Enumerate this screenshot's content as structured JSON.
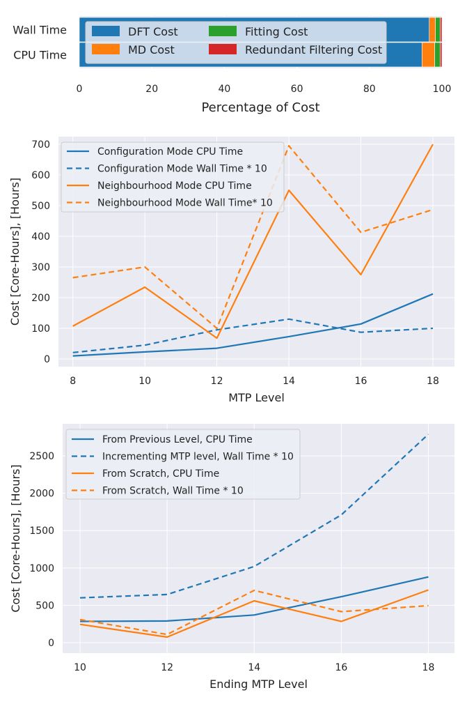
{
  "chart_data": [
    {
      "type": "bar",
      "orientation": "horizontal",
      "stacked": true,
      "categories": [
        "Wall Time",
        "CPU Time"
      ],
      "series": [
        {
          "name": "DFT Cost",
          "color": "#1f77b4",
          "values": [
            96.5,
            94.5
          ]
        },
        {
          "name": "MD Cost",
          "color": "#ff7f0e",
          "values": [
            1.7,
            3.5
          ]
        },
        {
          "name": "Fitting Cost",
          "color": "#2ca02c",
          "values": [
            1.3,
            1.5
          ]
        },
        {
          "name": "Redundant Filtering Cost",
          "color": "#d62728",
          "values": [
            0.5,
            0.5
          ]
        }
      ],
      "xlabel": "Percentage of Cost",
      "ylabel": "",
      "xlim": [
        0,
        100
      ],
      "xticks": [
        "0",
        "20",
        "40",
        "60",
        "80",
        "100"
      ],
      "grid": true,
      "legend": "upper-left, 2 columns"
    },
    {
      "type": "line",
      "x": [
        8,
        10,
        12,
        14,
        16,
        18
      ],
      "series": [
        {
          "name": "Configuration Mode CPU Time",
          "color": "#1f77b4",
          "dash": "solid",
          "values": [
            10,
            23,
            35,
            73,
            114,
            212
          ]
        },
        {
          "name": "Configuration Mode Wall Time * 10",
          "color": "#1f77b4",
          "dash": "dashed",
          "values": [
            21,
            45,
            95,
            130,
            87,
            100
          ]
        },
        {
          "name": "Neighbourhood Mode  CPU Time",
          "color": "#ff7f0e",
          "dash": "solid",
          "values": [
            107,
            234,
            68,
            550,
            275,
            700
          ]
        },
        {
          "name": "Neighbourhood Mode Wall Time* 10",
          "color": "#ff7f0e",
          "dash": "dashed",
          "values": [
            265,
            300,
            100,
            695,
            413,
            487
          ]
        }
      ],
      "xlabel": "MTP Level",
      "ylabel": "Cost [Core-Hours], [Hours]",
      "xlim": [
        7.6,
        18.6
      ],
      "ylim": [
        -25,
        725
      ],
      "xticks": [
        "8",
        "10",
        "12",
        "14",
        "16",
        "18"
      ],
      "yticks": [
        "0",
        "100",
        "200",
        "300",
        "400",
        "500",
        "600",
        "700"
      ],
      "grid": true,
      "legend": "upper-left"
    },
    {
      "type": "line",
      "x": [
        10,
        12,
        14,
        16,
        18
      ],
      "series": [
        {
          "name": "From Previous Level, CPU Time",
          "color": "#1f77b4",
          "dash": "solid",
          "values": [
            285,
            290,
            370,
            615,
            880
          ]
        },
        {
          "name": "Incrementing MTP level, Wall Time * 10",
          "color": "#1f77b4",
          "dash": "dashed",
          "values": [
            600,
            645,
            1020,
            1710,
            2790
          ]
        },
        {
          "name": "From Scratch, CPU Time",
          "color": "#ff7f0e",
          "dash": "solid",
          "values": [
            245,
            75,
            560,
            285,
            705
          ]
        },
        {
          "name": "From Scratch, Wall Time * 10",
          "color": "#ff7f0e",
          "dash": "dashed",
          "values": [
            310,
            110,
            700,
            415,
            495
          ]
        }
      ],
      "xlabel": "Ending MTP Level",
      "ylabel": "Cost [Core-Hours], [Hours]",
      "xlim": [
        9.6,
        18.6
      ],
      "ylim": [
        -140,
        2930
      ],
      "xticks": [
        "10",
        "12",
        "14",
        "16",
        "18"
      ],
      "yticks": [
        "0",
        "500",
        "1000",
        "1500",
        "2000",
        "2500"
      ],
      "grid": true,
      "legend": "upper-left"
    }
  ]
}
